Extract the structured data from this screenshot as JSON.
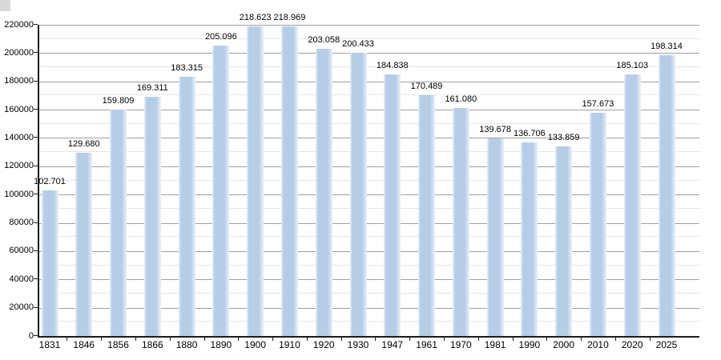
{
  "chart_data": {
    "type": "bar",
    "categories": [
      "1831",
      "1846",
      "1856",
      "1866",
      "1880",
      "1890",
      "1900",
      "1910",
      "1920",
      "1930",
      "1947",
      "1961",
      "1970",
      "1981",
      "1990",
      "2000",
      "2010",
      "2020",
      "2025"
    ],
    "values": [
      102701,
      129680,
      159809,
      169311,
      183315,
      205096,
      218623,
      218969,
      203058,
      200433,
      184838,
      170489,
      161080,
      139678,
      136706,
      133859,
      157673,
      185103,
      198314
    ],
    "value_labels": [
      "102.701",
      "129.680",
      "159.809",
      "169.311",
      "183.315",
      "205.096",
      "218.623",
      "218.969",
      "203.058",
      "200.433",
      "184.838",
      "170.489",
      "161.080",
      "139.678",
      "136.706",
      "133.859",
      "157.673",
      "185.103",
      "198.314"
    ],
    "y_tick_labels": [
      "0",
      "20000",
      "40000",
      "60000",
      "80000",
      "100000",
      "120000",
      "140000",
      "160000",
      "180000",
      "200000",
      "220000"
    ],
    "ylim": [
      0,
      220000
    ],
    "y_major_step": 20000,
    "y_minor_step": 10000,
    "grid": "on",
    "legend": "none",
    "colors": {
      "bar_fill": "#b5cde7",
      "bar_edge_fade": "#eaf1f8",
      "major_grid": "#a0a0a0",
      "minor_grid": "#e6e6e6",
      "axis": "#1c1c1c",
      "text": "#000000",
      "corner_artifact": "#d9d9d9",
      "background": "#ffffff"
    }
  }
}
